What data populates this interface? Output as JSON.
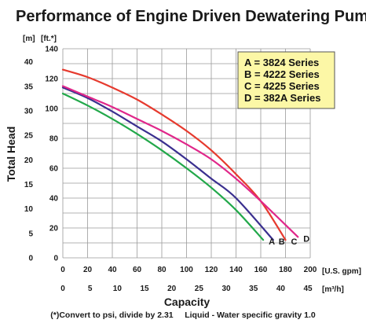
{
  "chart_data": {
    "type": "line",
    "title": "Performance of Engine Driven Dewatering Pumps",
    "ylabel": "Total Head",
    "xlabel": "Capacity",
    "y_unit_left": "[m]",
    "y_unit_right": "[ft.*]",
    "x_unit_top": "[U.S. gpm]",
    "x_unit_bottom": "[m³/h]",
    "footnote": "(*)Convert to psi, divide by 2.31     Liquid - Water specific gravity 1.0",
    "xlim_gpm": [
      0,
      200
    ],
    "ylim_ft": [
      0,
      140
    ],
    "x_ticks_gpm": [
      "0",
      "20",
      "40",
      "60",
      "80",
      "100",
      "120",
      "140",
      "160",
      "180",
      "200"
    ],
    "x_ticks_m3h": [
      "0",
      "5",
      "10",
      "15",
      "20",
      "25",
      "30",
      "35",
      "40",
      "45"
    ],
    "y_ticks_ft": [
      "0",
      "20",
      "40",
      "60",
      "80",
      "100",
      "120",
      "140"
    ],
    "y_ticks_m": [
      "0",
      "5",
      "10",
      "15",
      "20",
      "25",
      "30",
      "35",
      "40"
    ],
    "grid": true,
    "legend_position": "top-right",
    "legend": [
      "A = 3824 Series",
      "B = 4222 Series",
      "C = 4225 Series",
      "D = 382A Series"
    ],
    "series": [
      {
        "name": "A",
        "color": "#22a84a",
        "x": [
          0,
          20,
          40,
          60,
          80,
          100,
          120,
          140,
          162
        ],
        "y": [
          110,
          102,
          93,
          83,
          72,
          60,
          47,
          32,
          12
        ]
      },
      {
        "name": "B",
        "color": "#3a2f8f",
        "x": [
          0,
          20,
          40,
          60,
          80,
          100,
          120,
          140,
          170
        ],
        "y": [
          114,
          107,
          98,
          88,
          78,
          66,
          53,
          40,
          12
        ]
      },
      {
        "name": "C",
        "color": "#e63a2e",
        "x": [
          0,
          20,
          40,
          60,
          80,
          100,
          120,
          140,
          160,
          180
        ],
        "y": [
          126,
          121,
          114,
          106,
          96,
          85,
          72,
          56,
          38,
          12
        ]
      },
      {
        "name": "D",
        "color": "#e0278a",
        "x": [
          0,
          20,
          40,
          60,
          80,
          100,
          120,
          140,
          160,
          190
        ],
        "y": [
          115,
          108,
          101,
          93,
          85,
          76,
          66,
          53,
          38,
          14
        ]
      }
    ]
  }
}
